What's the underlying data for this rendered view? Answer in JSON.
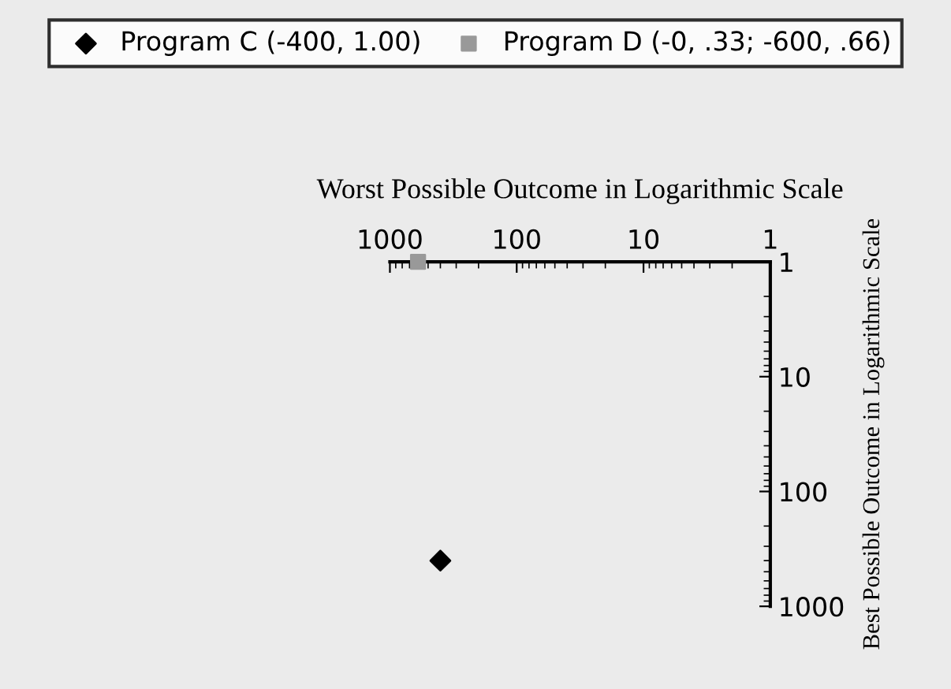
{
  "chart_data": {
    "type": "scatter",
    "xlabel": "Worst Possible Outcome in Logarithmic Scale",
    "ylabel": "Best Possible Outcome in Logarithmic Scale",
    "log": "xy",
    "xlim": [
      1000,
      1
    ],
    "ylim": [
      1000,
      1
    ],
    "xticks": [
      1000,
      100,
      10,
      1
    ],
    "yticks": [
      1,
      10,
      100,
      1000
    ],
    "grid": false,
    "legend": "top",
    "series": [
      {
        "name": "Program C (-400, 1.00)",
        "color": "#000000",
        "marker": "diamond",
        "x": [
          400
        ],
        "values": [
          400
        ]
      },
      {
        "name": "Program D (-0, .33; -600, .66)",
        "color": "#999999",
        "marker": "square",
        "x": [
          600
        ],
        "values": [
          1
        ]
      }
    ]
  }
}
